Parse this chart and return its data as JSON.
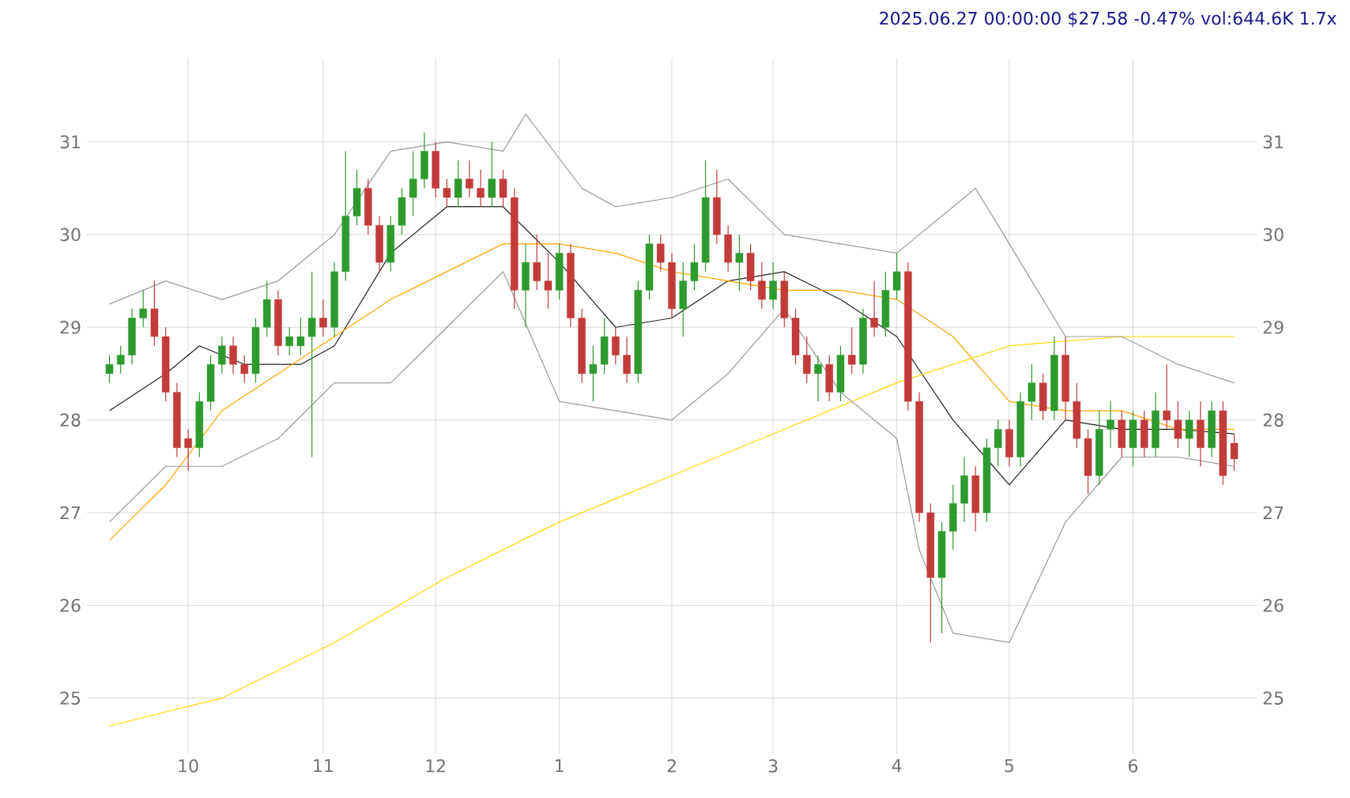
{
  "chart_data": {
    "type": "candlestick",
    "title": "2025.06.27 00:00:00 $27.58 -0.47% vol:644.6K 1.7x",
    "categories": [
      null,
      null,
      null,
      null,
      null,
      null,
      null,
      "10",
      null,
      null,
      null,
      null,
      null,
      null,
      null,
      null,
      null,
      null,
      null,
      "11",
      null,
      null,
      null,
      null,
      null,
      null,
      null,
      null,
      null,
      "12",
      null,
      null,
      null,
      null,
      null,
      null,
      null,
      null,
      null,
      null,
      "1",
      null,
      null,
      null,
      null,
      null,
      null,
      null,
      null,
      null,
      "2",
      null,
      null,
      null,
      null,
      null,
      null,
      null,
      null,
      "3",
      null,
      null,
      null,
      null,
      null,
      null,
      null,
      null,
      null,
      null,
      "4",
      null,
      null,
      null,
      null,
      null,
      null,
      null,
      null,
      null,
      "5",
      null,
      null,
      null,
      null,
      null,
      null,
      null,
      null,
      null,
      null,
      "6",
      null,
      null,
      null,
      null,
      null,
      null,
      null,
      null,
      null
    ],
    "ohlc": [
      [
        28.5,
        28.7,
        28.4,
        28.6
      ],
      [
        28.6,
        28.8,
        28.5,
        28.7
      ],
      [
        28.7,
        29.2,
        28.6,
        29.1
      ],
      [
        29.1,
        29.4,
        29.0,
        29.2
      ],
      [
        29.2,
        29.5,
        28.8,
        28.9
      ],
      [
        28.9,
        29.0,
        28.2,
        28.3
      ],
      [
        28.3,
        28.4,
        27.6,
        27.7
      ],
      [
        27.8,
        27.9,
        27.45,
        27.7
      ],
      [
        27.7,
        28.3,
        27.6,
        28.2
      ],
      [
        28.2,
        28.7,
        28.1,
        28.6
      ],
      [
        28.6,
        28.9,
        28.5,
        28.8
      ],
      [
        28.8,
        28.9,
        28.5,
        28.6
      ],
      [
        28.6,
        28.7,
        28.4,
        28.5
      ],
      [
        28.5,
        29.1,
        28.4,
        29.0
      ],
      [
        29.0,
        29.5,
        28.9,
        29.3
      ],
      [
        29.3,
        29.4,
        28.7,
        28.8
      ],
      [
        28.8,
        29.0,
        28.7,
        28.9
      ],
      [
        28.8,
        29.1,
        28.7,
        28.9
      ],
      [
        28.9,
        29.6,
        27.6,
        29.1
      ],
      [
        29.1,
        29.3,
        28.9,
        29.0
      ],
      [
        29.0,
        29.7,
        28.9,
        29.6
      ],
      [
        29.6,
        30.9,
        29.5,
        30.2
      ],
      [
        30.2,
        30.7,
        30.1,
        30.5
      ],
      [
        30.5,
        30.6,
        30.0,
        30.1
      ],
      [
        30.1,
        30.2,
        29.6,
        29.7
      ],
      [
        29.7,
        30.2,
        29.6,
        30.1
      ],
      [
        30.1,
        30.5,
        30.0,
        30.4
      ],
      [
        30.4,
        30.9,
        30.2,
        30.6
      ],
      [
        30.6,
        31.1,
        30.5,
        30.9
      ],
      [
        30.9,
        31.0,
        30.4,
        30.5
      ],
      [
        30.5,
        30.6,
        30.3,
        30.4
      ],
      [
        30.4,
        30.8,
        30.3,
        30.6
      ],
      [
        30.6,
        30.8,
        30.4,
        30.5
      ],
      [
        30.5,
        30.7,
        30.3,
        30.4
      ],
      [
        30.4,
        31.0,
        30.3,
        30.6
      ],
      [
        30.6,
        30.7,
        30.3,
        30.4
      ],
      [
        30.4,
        30.5,
        29.2,
        29.4
      ],
      [
        29.4,
        29.9,
        29.0,
        29.7
      ],
      [
        29.7,
        30.0,
        29.4,
        29.5
      ],
      [
        29.5,
        29.8,
        29.2,
        29.4
      ],
      [
        29.4,
        29.9,
        29.3,
        29.8
      ],
      [
        29.8,
        29.9,
        29.0,
        29.1
      ],
      [
        29.1,
        29.2,
        28.4,
        28.5
      ],
      [
        28.5,
        28.8,
        28.2,
        28.6
      ],
      [
        28.6,
        29.1,
        28.5,
        28.9
      ],
      [
        28.9,
        29.0,
        28.6,
        28.7
      ],
      [
        28.7,
        28.9,
        28.4,
        28.5
      ],
      [
        28.5,
        29.5,
        28.4,
        29.4
      ],
      [
        29.4,
        30.0,
        29.3,
        29.9
      ],
      [
        29.9,
        30.0,
        29.6,
        29.7
      ],
      [
        29.7,
        29.8,
        29.1,
        29.2
      ],
      [
        29.2,
        29.7,
        28.9,
        29.5
      ],
      [
        29.5,
        29.9,
        29.4,
        29.7
      ],
      [
        29.7,
        30.8,
        29.6,
        30.4
      ],
      [
        30.4,
        30.7,
        29.9,
        30.0
      ],
      [
        30.0,
        30.1,
        29.6,
        29.7
      ],
      [
        29.7,
        30.0,
        29.4,
        29.8
      ],
      [
        29.8,
        29.9,
        29.4,
        29.5
      ],
      [
        29.5,
        29.7,
        29.2,
        29.3
      ],
      [
        29.3,
        29.7,
        29.2,
        29.5
      ],
      [
        29.5,
        29.6,
        29.0,
        29.1
      ],
      [
        29.1,
        29.2,
        28.6,
        28.7
      ],
      [
        28.7,
        28.9,
        28.4,
        28.5
      ],
      [
        28.5,
        28.7,
        28.2,
        28.6
      ],
      [
        28.6,
        28.7,
        28.2,
        28.3
      ],
      [
        28.3,
        28.8,
        28.2,
        28.7
      ],
      [
        28.7,
        29.0,
        28.5,
        28.6
      ],
      [
        28.6,
        29.2,
        28.5,
        29.1
      ],
      [
        29.1,
        29.5,
        28.9,
        29.0
      ],
      [
        29.0,
        29.6,
        28.9,
        29.4
      ],
      [
        29.4,
        29.8,
        29.3,
        29.6
      ],
      [
        29.6,
        29.7,
        28.1,
        28.2
      ],
      [
        28.2,
        28.3,
        26.9,
        27.0
      ],
      [
        27.0,
        27.1,
        25.6,
        26.3
      ],
      [
        26.3,
        26.9,
        25.7,
        26.8
      ],
      [
        26.8,
        27.3,
        26.6,
        27.1
      ],
      [
        27.1,
        27.6,
        26.9,
        27.4
      ],
      [
        27.4,
        27.5,
        26.8,
        27.0
      ],
      [
        27.0,
        27.8,
        26.9,
        27.7
      ],
      [
        27.7,
        28.0,
        27.5,
        27.9
      ],
      [
        27.9,
        28.0,
        27.5,
        27.6
      ],
      [
        27.6,
        28.3,
        27.5,
        28.2
      ],
      [
        28.2,
        28.6,
        28.0,
        28.4
      ],
      [
        28.4,
        28.5,
        28.0,
        28.1
      ],
      [
        28.1,
        28.9,
        28.0,
        28.7
      ],
      [
        28.7,
        28.9,
        28.0,
        28.2
      ],
      [
        28.2,
        28.4,
        27.7,
        27.8
      ],
      [
        27.8,
        27.9,
        27.2,
        27.4
      ],
      [
        27.4,
        28.1,
        27.3,
        27.9
      ],
      [
        27.9,
        28.2,
        27.7,
        28.0
      ],
      [
        28.0,
        28.1,
        27.6,
        27.7
      ],
      [
        27.7,
        28.1,
        27.5,
        28.0
      ],
      [
        28.0,
        28.1,
        27.6,
        27.7
      ],
      [
        27.7,
        28.3,
        27.6,
        28.1
      ],
      [
        28.1,
        28.6,
        27.9,
        28.0
      ],
      [
        28.0,
        28.2,
        27.7,
        27.8
      ],
      [
        27.8,
        28.1,
        27.6,
        28.0
      ],
      [
        28.0,
        28.2,
        27.5,
        27.7
      ],
      [
        27.7,
        28.2,
        27.6,
        28.1
      ],
      [
        28.1,
        28.2,
        27.3,
        27.4
      ],
      [
        27.75,
        27.85,
        27.45,
        27.58
      ]
    ],
    "series": [
      {
        "type": "line",
        "color": "#222222",
        "values": [
          28.1,
          null,
          null,
          null,
          null,
          28.5,
          null,
          null,
          28.8,
          null,
          null,
          null,
          28.6,
          null,
          null,
          null,
          null,
          28.6,
          null,
          null,
          28.8,
          null,
          null,
          null,
          null,
          29.8,
          null,
          null,
          null,
          null,
          30.3,
          null,
          null,
          null,
          null,
          30.3,
          null,
          null,
          null,
          null,
          29.7,
          null,
          null,
          null,
          null,
          29.0,
          null,
          null,
          null,
          null,
          29.1,
          null,
          null,
          null,
          null,
          29.5,
          null,
          null,
          null,
          null,
          29.6,
          null,
          null,
          null,
          null,
          29.3,
          null,
          null,
          null,
          null,
          28.9,
          null,
          null,
          null,
          null,
          28.0,
          null,
          null,
          null,
          null,
          27.3,
          null,
          null,
          null,
          null,
          28.0,
          null,
          null,
          null,
          null,
          27.9,
          null,
          null,
          null,
          null,
          27.9,
          null,
          null,
          null,
          null,
          27.85
        ]
      },
      {
        "type": "line",
        "color": "#ffa500",
        "values": [
          26.7,
          null,
          null,
          null,
          null,
          27.3,
          null,
          null,
          null,
          null,
          28.1,
          null,
          null,
          null,
          null,
          28.5,
          null,
          null,
          null,
          null,
          28.9,
          null,
          null,
          null,
          null,
          29.3,
          null,
          null,
          null,
          null,
          29.6,
          null,
          null,
          null,
          null,
          29.9,
          null,
          null,
          null,
          null,
          29.9,
          null,
          null,
          null,
          null,
          29.8,
          null,
          null,
          null,
          null,
          29.6,
          null,
          null,
          null,
          null,
          29.5,
          null,
          null,
          null,
          null,
          29.4,
          null,
          null,
          null,
          null,
          29.4,
          null,
          null,
          null,
          null,
          29.3,
          null,
          null,
          null,
          null,
          28.9,
          null,
          null,
          null,
          null,
          28.2,
          null,
          null,
          null,
          null,
          28.1,
          null,
          null,
          null,
          null,
          28.1,
          null,
          null,
          null,
          null,
          27.9,
          null,
          null,
          null,
          null,
          27.9
        ]
      },
      {
        "type": "line",
        "color": "#ffd700",
        "values": [
          24.7,
          null,
          null,
          null,
          null,
          null,
          null,
          null,
          null,
          null,
          25.0,
          null,
          null,
          null,
          null,
          null,
          null,
          null,
          null,
          null,
          25.6,
          null,
          null,
          null,
          null,
          null,
          null,
          null,
          null,
          null,
          26.3,
          null,
          null,
          null,
          null,
          null,
          null,
          null,
          null,
          null,
          26.9,
          null,
          null,
          null,
          null,
          null,
          null,
          null,
          null,
          null,
          27.4,
          null,
          null,
          null,
          null,
          null,
          null,
          null,
          null,
          null,
          27.9,
          null,
          null,
          null,
          null,
          null,
          null,
          null,
          null,
          null,
          28.4,
          null,
          null,
          null,
          null,
          null,
          null,
          null,
          null,
          null,
          28.8,
          null,
          null,
          null,
          null,
          null,
          null,
          null,
          null,
          null,
          28.9,
          null,
          null,
          null,
          null,
          null,
          null,
          null,
          null,
          null,
          28.9
        ]
      },
      {
        "type": "line",
        "color": "#999999",
        "values": [
          29.25,
          null,
          null,
          null,
          null,
          29.5,
          null,
          null,
          null,
          null,
          29.3,
          null,
          null,
          null,
          null,
          29.5,
          null,
          null,
          null,
          null,
          30.0,
          null,
          null,
          null,
          null,
          30.9,
          null,
          null,
          null,
          null,
          31.0,
          null,
          null,
          null,
          null,
          30.9,
          null,
          31.3,
          null,
          null,
          null,
          null,
          30.5,
          null,
          null,
          30.3,
          null,
          null,
          null,
          null,
          30.4,
          null,
          null,
          null,
          null,
          30.6,
          null,
          null,
          null,
          null,
          30.0,
          null,
          null,
          null,
          null,
          29.9,
          null,
          null,
          null,
          null,
          29.8,
          null,
          null,
          null,
          null,
          30.3,
          null,
          30.5,
          null,
          null,
          null,
          null,
          29.5,
          null,
          null,
          28.9,
          null,
          null,
          null,
          null,
          28.9,
          null,
          null,
          null,
          null,
          28.6,
          null,
          null,
          null,
          null,
          28.4
        ]
      },
      {
        "type": "line",
        "color": "#999999",
        "values": [
          26.9,
          null,
          null,
          null,
          null,
          27.5,
          null,
          null,
          null,
          null,
          27.5,
          null,
          null,
          null,
          null,
          27.8,
          null,
          null,
          null,
          null,
          28.4,
          null,
          null,
          null,
          null,
          28.4,
          null,
          null,
          null,
          null,
          29.0,
          null,
          null,
          null,
          null,
          29.6,
          null,
          null,
          null,
          null,
          28.2,
          null,
          null,
          null,
          null,
          28.1,
          null,
          null,
          null,
          null,
          28.0,
          null,
          null,
          null,
          null,
          28.5,
          null,
          null,
          null,
          null,
          29.2,
          null,
          null,
          null,
          null,
          28.3,
          null,
          null,
          null,
          null,
          27.8,
          null,
          26.6,
          null,
          null,
          25.7,
          null,
          null,
          null,
          null,
          25.6,
          null,
          null,
          null,
          null,
          26.9,
          null,
          null,
          null,
          null,
          27.6,
          null,
          null,
          null,
          null,
          27.6,
          null,
          null,
          null,
          null,
          27.5
        ]
      }
    ],
    "ylim": [
      24.4,
      31.9
    ],
    "yticks": [
      25,
      26,
      27,
      28,
      29,
      30,
      31
    ],
    "y2lim": [
      24.4,
      31.9
    ],
    "y2ticks": [
      25,
      26,
      27,
      28,
      29,
      30,
      31
    ],
    "grid": true
  }
}
